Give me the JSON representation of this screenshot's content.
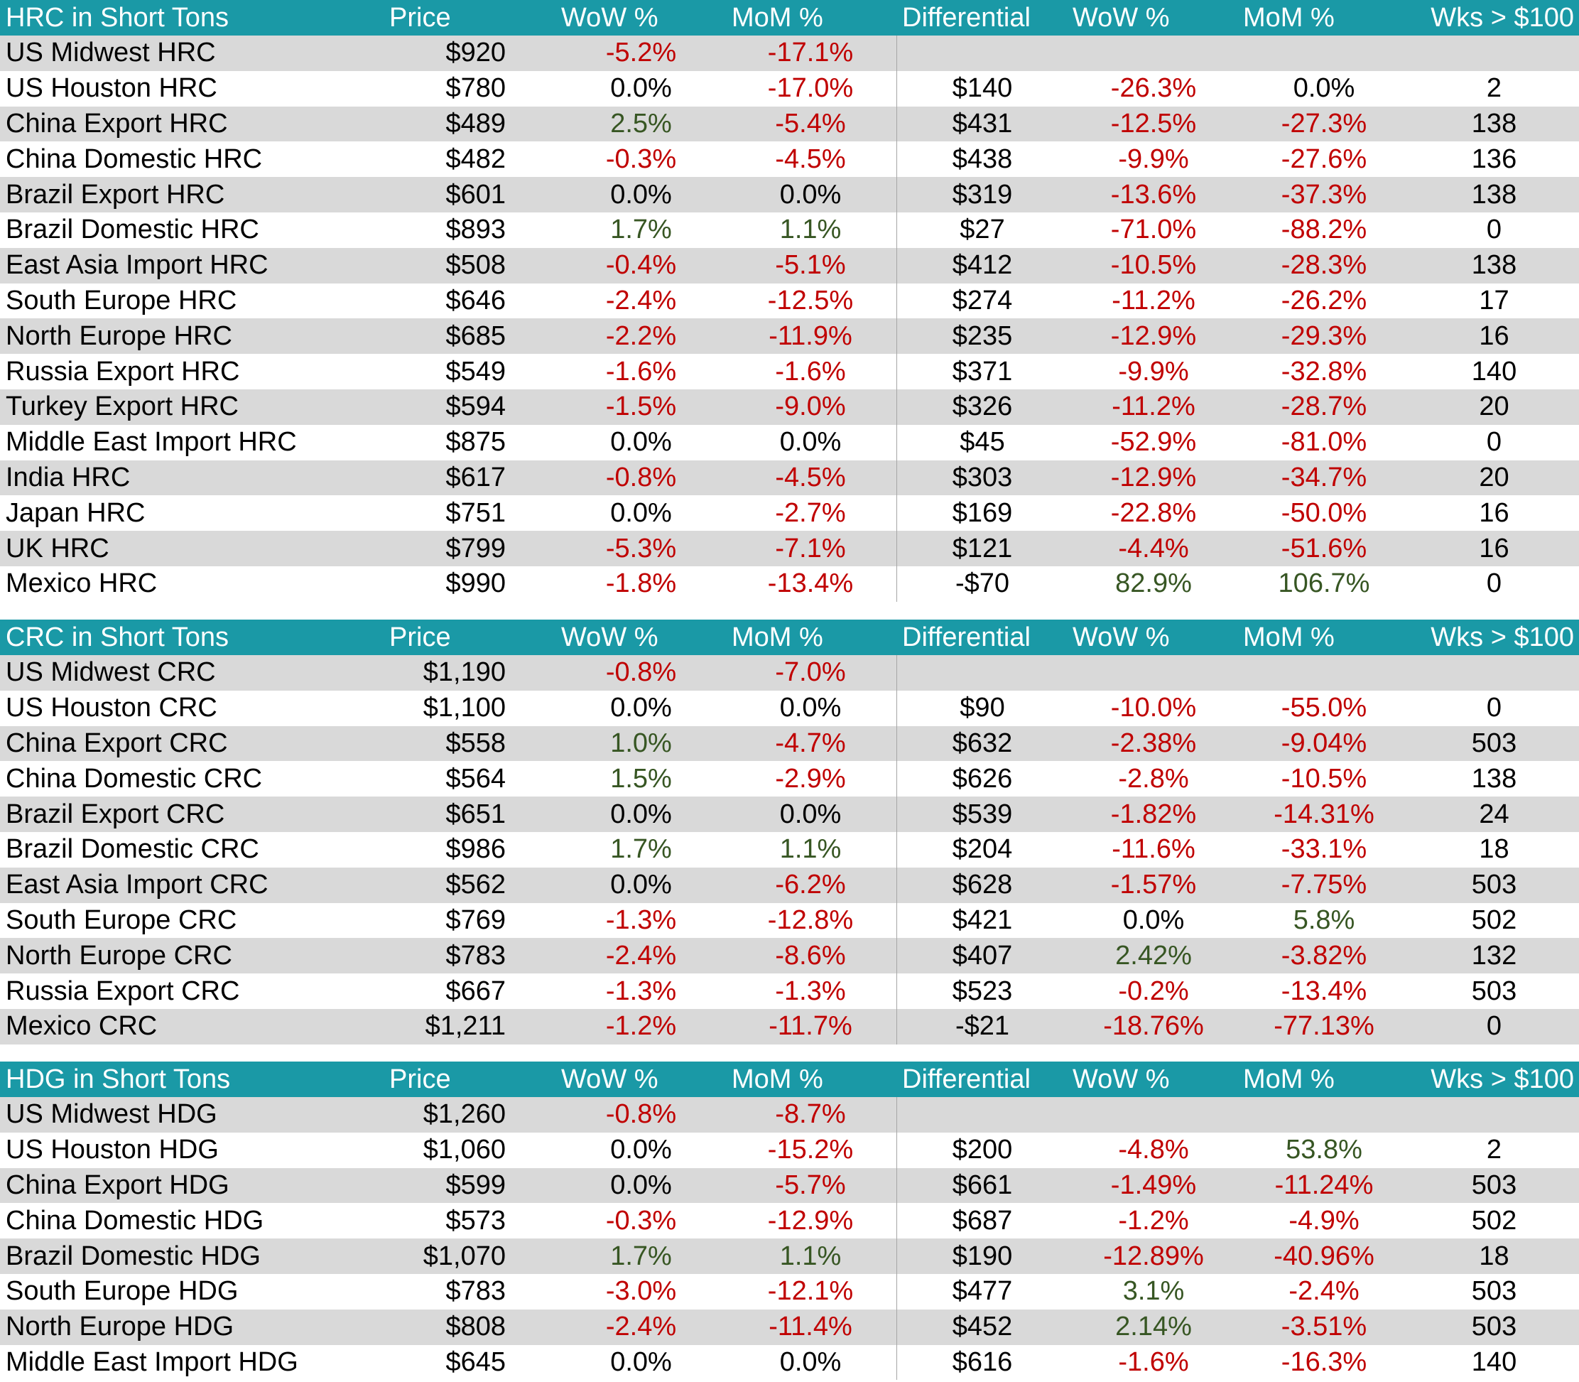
{
  "colors": {
    "header_bg": "#1a99a6",
    "header_text": "#ffffff",
    "stripe": "#d9d9d9",
    "negative": "#c00000",
    "positive": "#375623",
    "neutral": "#000000"
  },
  "sections": [
    {
      "header": [
        "HRC in Short Tons",
        "Price",
        "WoW %",
        "MoM %",
        "Differential",
        "WoW %",
        "MoM %",
        "Wks > $100"
      ],
      "rows": [
        [
          "US Midwest HRC",
          "$920",
          "-5.2%",
          "-17.1%",
          "",
          "",
          "",
          ""
        ],
        [
          "US Houston HRC",
          "$780",
          "0.0%",
          "-17.0%",
          "$140",
          "-26.3%",
          "0.0%",
          "2"
        ],
        [
          "China Export HRC",
          "$489",
          "2.5%",
          "-5.4%",
          "$431",
          "-12.5%",
          "-27.3%",
          "138"
        ],
        [
          "China Domestic HRC",
          "$482",
          "-0.3%",
          "-4.5%",
          "$438",
          "-9.9%",
          "-27.6%",
          "136"
        ],
        [
          "Brazil Export HRC",
          "$601",
          "0.0%",
          "0.0%",
          "$319",
          "-13.6%",
          "-37.3%",
          "138"
        ],
        [
          "Brazil Domestic HRC",
          "$893",
          "1.7%",
          "1.1%",
          "$27",
          "-71.0%",
          "-88.2%",
          "0"
        ],
        [
          "East Asia Import HRC",
          "$508",
          "-0.4%",
          "-5.1%",
          "$412",
          "-10.5%",
          "-28.3%",
          "138"
        ],
        [
          "South Europe HRC",
          "$646",
          "-2.4%",
          "-12.5%",
          "$274",
          "-11.2%",
          "-26.2%",
          "17"
        ],
        [
          "North Europe HRC",
          "$685",
          "-2.2%",
          "-11.9%",
          "$235",
          "-12.9%",
          "-29.3%",
          "16"
        ],
        [
          "Russia Export HRC",
          "$549",
          "-1.6%",
          "-1.6%",
          "$371",
          "-9.9%",
          "-32.8%",
          "140"
        ],
        [
          "Turkey Export HRC",
          "$594",
          "-1.5%",
          "-9.0%",
          "$326",
          "-11.2%",
          "-28.7%",
          "20"
        ],
        [
          "Middle East Import HRC",
          "$875",
          "0.0%",
          "0.0%",
          "$45",
          "-52.9%",
          "-81.0%",
          "0"
        ],
        [
          "India HRC",
          "$617",
          "-0.8%",
          "-4.5%",
          "$303",
          "-12.9%",
          "-34.7%",
          "20"
        ],
        [
          "Japan HRC",
          "$751",
          "0.0%",
          "-2.7%",
          "$169",
          "-22.8%",
          "-50.0%",
          "16"
        ],
        [
          "UK HRC",
          "$799",
          "-5.3%",
          "-7.1%",
          "$121",
          "-4.4%",
          "-51.6%",
          "16"
        ],
        [
          "Mexico HRC",
          "$990",
          "-1.8%",
          "-13.4%",
          "-$70",
          "82.9%",
          "106.7%",
          "0"
        ]
      ]
    },
    {
      "header": [
        "CRC in Short Tons",
        "Price",
        "WoW %",
        "MoM %",
        "Differential",
        "WoW %",
        "MoM %",
        "Wks > $100"
      ],
      "rows": [
        [
          "US Midwest CRC",
          "$1,190",
          "-0.8%",
          "-7.0%",
          "",
          "",
          "",
          ""
        ],
        [
          "US Houston CRC",
          "$1,100",
          "0.0%",
          "0.0%",
          "$90",
          "-10.0%",
          "-55.0%",
          "0"
        ],
        [
          "China Export CRC",
          "$558",
          "1.0%",
          "-4.7%",
          "$632",
          "-2.38%",
          "-9.04%",
          "503"
        ],
        [
          "China Domestic CRC",
          "$564",
          "1.5%",
          "-2.9%",
          "$626",
          "-2.8%",
          "-10.5%",
          "138"
        ],
        [
          "Brazil Export CRC",
          "$651",
          "0.0%",
          "0.0%",
          "$539",
          "-1.82%",
          "-14.31%",
          "24"
        ],
        [
          "Brazil Domestic CRC",
          "$986",
          "1.7%",
          "1.1%",
          "$204",
          "-11.6%",
          "-33.1%",
          "18"
        ],
        [
          "East Asia Import CRC",
          "$562",
          "0.0%",
          "-6.2%",
          "$628",
          "-1.57%",
          "-7.75%",
          "503"
        ],
        [
          "South Europe CRC",
          "$769",
          "-1.3%",
          "-12.8%",
          "$421",
          "0.0%",
          "5.8%",
          "502"
        ],
        [
          "North Europe CRC",
          "$783",
          "-2.4%",
          "-8.6%",
          "$407",
          "2.42%",
          "-3.82%",
          "132"
        ],
        [
          "Russia Export CRC",
          "$667",
          "-1.3%",
          "-1.3%",
          "$523",
          "-0.2%",
          "-13.4%",
          "503"
        ],
        [
          "Mexico CRC",
          "$1,211",
          "-1.2%",
          "-11.7%",
          "-$21",
          "-18.76%",
          "-77.13%",
          "0"
        ]
      ]
    },
    {
      "header": [
        "HDG in Short Tons",
        "Price",
        "WoW %",
        "MoM %",
        "Differential",
        "WoW %",
        "MoM %",
        "Wks > $100"
      ],
      "rows": [
        [
          "US Midwest HDG",
          "$1,260",
          "-0.8%",
          "-8.7%",
          "",
          "",
          "",
          ""
        ],
        [
          "US Houston HDG",
          "$1,060",
          "0.0%",
          "-15.2%",
          "$200",
          "-4.8%",
          "53.8%",
          "2"
        ],
        [
          "China Export HDG",
          "$599",
          "0.0%",
          "-5.7%",
          "$661",
          "-1.49%",
          "-11.24%",
          "503"
        ],
        [
          "China Domestic HDG",
          "$573",
          "-0.3%",
          "-12.9%",
          "$687",
          "-1.2%",
          "-4.9%",
          "502"
        ],
        [
          "Brazil Domestic HDG",
          "$1,070",
          "1.7%",
          "1.1%",
          "$190",
          "-12.89%",
          "-40.96%",
          "18"
        ],
        [
          "South Europe HDG",
          "$783",
          "-3.0%",
          "-12.1%",
          "$477",
          "3.1%",
          "-2.4%",
          "503"
        ],
        [
          "North Europe HDG",
          "$808",
          "-2.4%",
          "-11.4%",
          "$452",
          "2.14%",
          "-3.51%",
          "503"
        ],
        [
          "Middle East Import HDG",
          "$645",
          "0.0%",
          "0.0%",
          "$616",
          "-1.6%",
          "-16.3%",
          "140"
        ]
      ]
    }
  ]
}
